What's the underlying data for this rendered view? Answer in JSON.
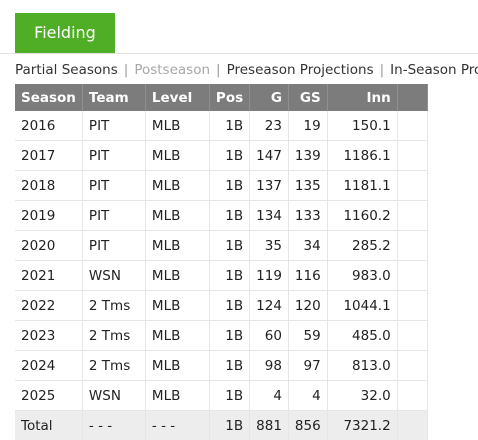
{
  "tab": {
    "label": "Fielding"
  },
  "subnav": {
    "items": [
      {
        "label": "Partial Seasons",
        "active": true
      },
      {
        "label": "Postseason",
        "active": false
      },
      {
        "label": "Preseason Projections",
        "active": true
      },
      {
        "label": "In-Season Projections",
        "active": true
      }
    ],
    "separator": "|"
  },
  "table": {
    "headers": [
      "Season",
      "Team",
      "Level",
      "Pos",
      "G",
      "GS",
      "Inn"
    ],
    "rows": [
      [
        "2016",
        "PIT",
        "MLB",
        "1B",
        "23",
        "19",
        "150.1"
      ],
      [
        "2017",
        "PIT",
        "MLB",
        "1B",
        "147",
        "139",
        "1186.1"
      ],
      [
        "2018",
        "PIT",
        "MLB",
        "1B",
        "137",
        "135",
        "1181.1"
      ],
      [
        "2019",
        "PIT",
        "MLB",
        "1B",
        "134",
        "133",
        "1160.2"
      ],
      [
        "2020",
        "PIT",
        "MLB",
        "1B",
        "35",
        "34",
        "285.2"
      ],
      [
        "2021",
        "WSN",
        "MLB",
        "1B",
        "119",
        "116",
        "983.0"
      ],
      [
        "2022",
        "2 Tms",
        "MLB",
        "1B",
        "124",
        "120",
        "1044.1"
      ],
      [
        "2023",
        "2 Tms",
        "MLB",
        "1B",
        "60",
        "59",
        "485.0"
      ],
      [
        "2024",
        "2 Tms",
        "MLB",
        "1B",
        "98",
        "97",
        "813.0"
      ],
      [
        "2025",
        "WSN",
        "MLB",
        "1B",
        "4",
        "4",
        "32.0"
      ]
    ],
    "total": [
      "Total",
      "- - -",
      "- - -",
      "1B",
      "881",
      "856",
      "7321.2"
    ]
  }
}
